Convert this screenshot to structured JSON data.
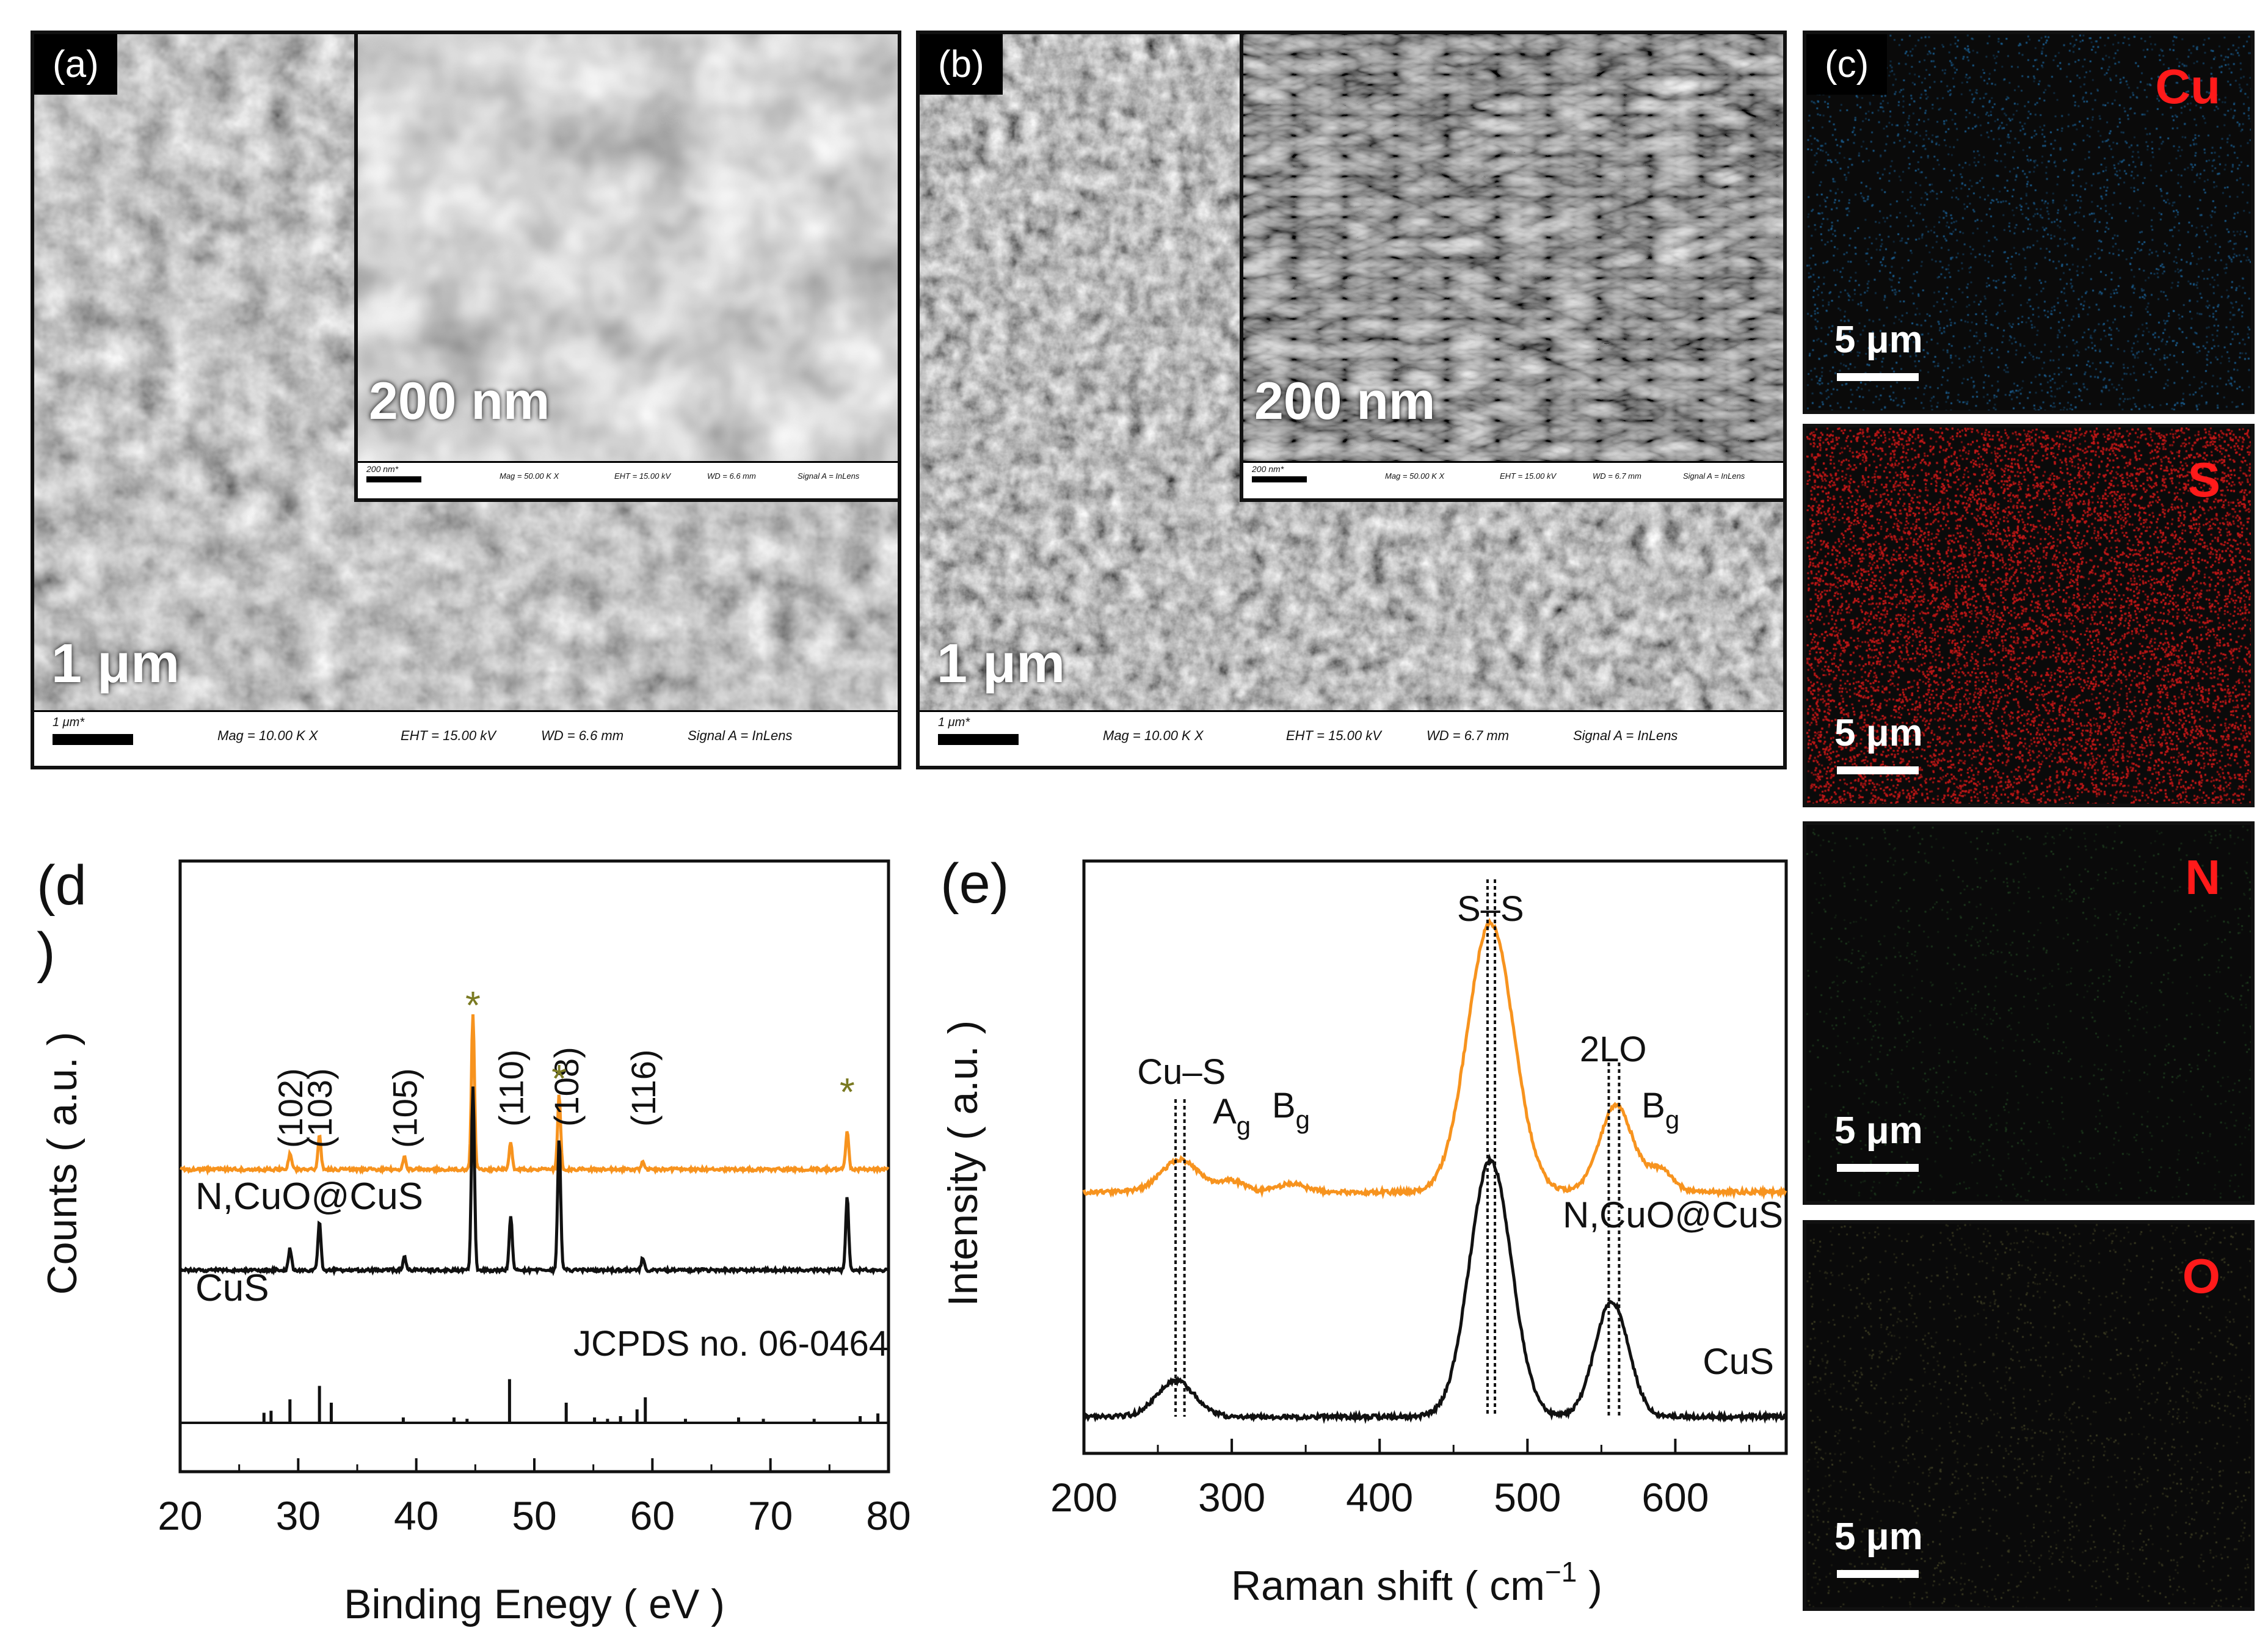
{
  "panels": {
    "a": {
      "label": "(a)",
      "inset_scale": "200 nm",
      "main_scale": "1 μm",
      "inset_bar": {
        "scale": "200 nm*",
        "mag": "Mag = 50.00 K X",
        "eht": "EHT = 15.00 kV",
        "wd": "WD = 6.6 mm",
        "signal": "Signal A = InLens"
      },
      "main_bar": {
        "scale": "1 μm*",
        "mag": "Mag = 10.00 K X",
        "eht": "EHT = 15.00 kV",
        "wd": "WD = 6.6 mm",
        "signal": "Signal A = InLens"
      }
    },
    "b": {
      "label": "(b)",
      "inset_scale": "200 nm",
      "main_scale": "1 μm",
      "inset_bar": {
        "scale": "200 nm*",
        "mag": "Mag = 50.00 K X",
        "eht": "EHT = 15.00 kV",
        "wd": "WD = 6.7 mm",
        "signal": "Signal A = InLens"
      },
      "main_bar": {
        "scale": "1 μm*",
        "mag": "Mag = 10.00 K X",
        "eht": "EHT = 15.00 kV",
        "wd": "WD = 6.7 mm",
        "signal": "Signal A = InLens"
      }
    },
    "c": {
      "label": "(c)",
      "maps": [
        {
          "element": "Cu",
          "scale": "5 μm",
          "dot_color": "#1a5a8a"
        },
        {
          "element": "S",
          "scale": "5 μm",
          "dot_color": "#c01818"
        },
        {
          "element": "N",
          "scale": "5 μm",
          "dot_color": "#1e3a1e"
        },
        {
          "element": "O",
          "scale": "5 μm",
          "dot_color": "#3a3a22"
        }
      ]
    },
    "d": {
      "label": "(d\n)"
    },
    "e": {
      "label": "(e)"
    }
  },
  "chart_data": [
    {
      "type": "line",
      "panel": "d",
      "xlabel": "Binding Enegy ( eV )",
      "ylabel": "Counts ( a.u. )",
      "xlim": [
        20,
        80
      ],
      "xticks": [
        20,
        30,
        40,
        50,
        60,
        70,
        80
      ],
      "series": [
        {
          "name": "N,CuO@CuS",
          "color": "#f7931e",
          "peaks": [
            [
              29.3,
              0.1
            ],
            [
              31.8,
              0.22
            ],
            [
              39.0,
              0.08
            ],
            [
              44.8,
              1.0
            ],
            [
              48.0,
              0.18
            ],
            [
              52.1,
              0.48
            ],
            [
              59.2,
              0.05
            ],
            [
              76.5,
              0.25
            ]
          ]
        },
        {
          "name": "CuS",
          "color": "#111111",
          "peaks": [
            [
              29.3,
              0.12
            ],
            [
              31.8,
              0.26
            ],
            [
              39.0,
              0.07
            ],
            [
              44.8,
              1.0
            ],
            [
              48.0,
              0.3
            ],
            [
              52.1,
              0.72
            ],
            [
              59.2,
              0.07
            ],
            [
              76.5,
              0.4
            ]
          ]
        },
        {
          "name": "JCPDS no. 06-0464",
          "color": "#111111",
          "type": "stick",
          "x": [
            27.1,
            27.7,
            29.3,
            31.8,
            32.8,
            38.9,
            43.2,
            44.3,
            47.9,
            52.7,
            55.1,
            56.2,
            57.3,
            58.7,
            59.4,
            62.8,
            67.3,
            69.4,
            73.7,
            77.6,
            79.1
          ],
          "values": [
            0.15,
            0.18,
            0.35,
            0.55,
            0.3,
            0.08,
            0.08,
            0.06,
            0.65,
            0.3,
            0.08,
            0.06,
            0.1,
            0.2,
            0.38,
            0.06,
            0.08,
            0.06,
            0.06,
            0.1,
            0.14
          ]
        }
      ],
      "annotations": {
        "hkl": [
          "(102)",
          "(103)",
          "(105)",
          "(110)",
          "(108)",
          "(116)"
        ],
        "hkl_x": [
          29.3,
          31.8,
          39.0,
          48.0,
          52.7,
          59.2
        ],
        "star": "*",
        "star_x": [
          44.8,
          52.1,
          76.5
        ],
        "star_color": "#7a7a22"
      }
    },
    {
      "type": "line",
      "panel": "e",
      "xlabel": "Raman shift ( cm",
      "xlabel_sup": "−1",
      "xlabel_end": " )",
      "ylabel": "Intensity ( a.u. )",
      "xlim": [
        200,
        675
      ],
      "xticks": [
        200,
        300,
        400,
        500,
        600
      ],
      "series": [
        {
          "name": "N,CuO@CuS",
          "color": "#f7931e",
          "peaks": [
            [
              265,
              0.12,
              18
            ],
            [
              300,
              0.04,
              12
            ],
            [
              340,
              0.03,
              14
            ],
            [
              475,
              1.0,
              22
            ],
            [
              560,
              0.32,
              16
            ],
            [
              590,
              0.08,
              12
            ]
          ]
        },
        {
          "name": "CuS",
          "color": "#111111",
          "peaks": [
            [
              262,
              0.14,
              18
            ],
            [
              475,
              1.0,
              20
            ],
            [
              557,
              0.45,
              16
            ]
          ]
        }
      ],
      "annotations": {
        "cus": "Cu–S",
        "ag": "A",
        "ag_sub": "g",
        "bg1": "B",
        "bg1_sub": "g",
        "ss": "S–S",
        "lo": "2LO",
        "bg2": "B",
        "bg2_sub": "g",
        "dotted_x": [
          262,
          268,
          473,
          478,
          555,
          562
        ]
      }
    }
  ]
}
